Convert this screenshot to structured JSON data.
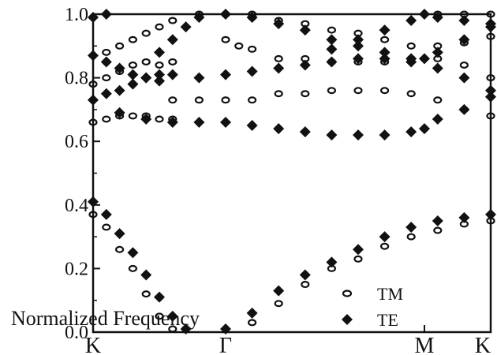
{
  "chart_data": {
    "type": "scatter",
    "title": "",
    "xlabel": "",
    "ylabel": "Normalized Frequency",
    "ylim": [
      0.0,
      1.0
    ],
    "xlim": [
      0.0,
      3.0
    ],
    "y_ticks": [
      "0.0",
      "0.2",
      "0.4",
      "0.6",
      "0.8",
      "1.0"
    ],
    "y_tick_values": [
      0.0,
      0.2,
      0.4,
      0.6,
      0.8,
      1.0
    ],
    "x_ticks": [
      {
        "label": "K",
        "value": 0.0
      },
      {
        "label": "Γ",
        "value": 1.0
      },
      {
        "label": "M",
        "value": 2.5
      },
      {
        "label": "K",
        "value": 3.0
      }
    ],
    "legend_position": "bottom-right",
    "series": [
      {
        "name": "TM",
        "marker": "open-ellipse",
        "color": "#111111",
        "bands": [
          [
            [
              0.0,
              0.37
            ],
            [
              0.1,
              0.33
            ],
            [
              0.2,
              0.26
            ],
            [
              0.3,
              0.2
            ],
            [
              0.4,
              0.12
            ],
            [
              0.5,
              0.05
            ],
            [
              0.6,
              0.01
            ]
          ],
          [
            [
              1.2,
              0.03
            ],
            [
              1.4,
              0.09
            ],
            [
              1.6,
              0.15
            ],
            [
              1.8,
              0.2
            ],
            [
              2.0,
              0.23
            ],
            [
              2.2,
              0.27
            ],
            [
              2.4,
              0.3
            ],
            [
              2.6,
              0.32
            ],
            [
              2.8,
              0.34
            ],
            [
              3.0,
              0.35
            ]
          ],
          [
            [
              0.0,
              0.66
            ],
            [
              0.1,
              0.67
            ],
            [
              0.2,
              0.68
            ],
            [
              0.3,
              0.68
            ],
            [
              0.4,
              0.68
            ],
            [
              0.5,
              0.67
            ],
            [
              0.6,
              0.67
            ]
          ],
          [
            [
              0.6,
              0.73
            ],
            [
              0.8,
              0.73
            ],
            [
              1.0,
              0.73
            ],
            [
              1.2,
              0.73
            ],
            [
              1.4,
              0.75
            ],
            [
              1.6,
              0.75
            ],
            [
              1.8,
              0.76
            ],
            [
              2.0,
              0.76
            ],
            [
              2.2,
              0.76
            ],
            [
              2.4,
              0.75
            ],
            [
              2.6,
              0.73
            ],
            [
              2.8,
              0.7
            ],
            [
              3.0,
              0.68
            ]
          ],
          [
            [
              0.0,
              0.78
            ],
            [
              0.1,
              0.8
            ],
            [
              0.2,
              0.82
            ],
            [
              0.3,
              0.84
            ],
            [
              0.4,
              0.85
            ],
            [
              0.5,
              0.84
            ],
            [
              0.6,
              0.85
            ]
          ],
          [
            [
              0.1,
              0.88
            ],
            [
              0.2,
              0.9
            ],
            [
              0.3,
              0.92
            ],
            [
              0.4,
              0.94
            ],
            [
              0.5,
              0.96
            ]
          ],
          [
            [
              1.4,
              0.86
            ],
            [
              1.6,
              0.86
            ],
            [
              1.8,
              0.85
            ],
            [
              2.0,
              0.85
            ],
            [
              2.2,
              0.85
            ],
            [
              2.4,
              0.86
            ],
            [
              2.6,
              0.86
            ],
            [
              2.8,
              0.84
            ],
            [
              3.0,
              0.8
            ]
          ],
          [
            [
              1.0,
              0.92
            ],
            [
              1.1,
              0.9
            ],
            [
              1.2,
              0.89
            ]
          ],
          [
            [
              1.2,
              0.99
            ],
            [
              1.4,
              0.98
            ],
            [
              1.6,
              0.97
            ],
            [
              1.8,
              0.95
            ],
            [
              2.0,
              0.94
            ],
            [
              2.2,
              0.92
            ],
            [
              2.4,
              0.9
            ],
            [
              2.6,
              0.9
            ],
            [
              2.8,
              0.91
            ],
            [
              3.0,
              0.93
            ]
          ],
          [
            [
              0.6,
              0.98
            ],
            [
              0.8,
              1.0
            ],
            [
              1.0,
              1.0
            ],
            [
              1.2,
              1.0
            ],
            [
              2.6,
              1.0
            ],
            [
              2.8,
              1.0
            ],
            [
              3.0,
              1.0
            ]
          ]
        ]
      },
      {
        "name": "TE",
        "marker": "filled-diamond",
        "color": "#111111",
        "bands": [
          [
            [
              0.0,
              0.41
            ],
            [
              0.1,
              0.37
            ],
            [
              0.2,
              0.31
            ],
            [
              0.3,
              0.25
            ],
            [
              0.4,
              0.18
            ],
            [
              0.5,
              0.11
            ],
            [
              0.6,
              0.05
            ],
            [
              0.7,
              0.01
            ]
          ],
          [
            [
              1.0,
              0.01
            ],
            [
              1.2,
              0.06
            ],
            [
              1.4,
              0.13
            ],
            [
              1.6,
              0.18
            ],
            [
              1.8,
              0.22
            ],
            [
              2.0,
              0.26
            ],
            [
              2.2,
              0.3
            ],
            [
              2.4,
              0.33
            ],
            [
              2.6,
              0.35
            ],
            [
              2.8,
              0.36
            ],
            [
              3.0,
              0.37
            ]
          ],
          [
            [
              0.2,
              0.69
            ],
            [
              0.4,
              0.67
            ],
            [
              0.6,
              0.66
            ],
            [
              0.8,
              0.66
            ],
            [
              1.0,
              0.66
            ],
            [
              1.2,
              0.65
            ],
            [
              1.4,
              0.64
            ],
            [
              1.6,
              0.63
            ],
            [
              1.8,
              0.62
            ],
            [
              2.0,
              0.62
            ],
            [
              2.2,
              0.62
            ],
            [
              2.4,
              0.63
            ],
            [
              2.5,
              0.64
            ],
            [
              2.6,
              0.67
            ],
            [
              2.8,
              0.7
            ],
            [
              3.0,
              0.74
            ]
          ],
          [
            [
              0.0,
              0.73
            ],
            [
              0.1,
              0.75
            ],
            [
              0.2,
              0.76
            ],
            [
              0.3,
              0.78
            ],
            [
              0.4,
              0.8
            ],
            [
              0.5,
              0.81
            ],
            [
              0.6,
              0.81
            ],
            [
              0.8,
              0.8
            ],
            [
              1.0,
              0.81
            ],
            [
              1.2,
              0.82
            ],
            [
              1.4,
              0.83
            ],
            [
              1.6,
              0.84
            ],
            [
              1.8,
              0.85
            ],
            [
              2.0,
              0.86
            ],
            [
              2.2,
              0.86
            ],
            [
              2.4,
              0.85
            ],
            [
              2.6,
              0.83
            ],
            [
              2.8,
              0.8
            ],
            [
              3.0,
              0.76
            ]
          ],
          [
            [
              0.0,
              0.87
            ],
            [
              0.1,
              0.85
            ],
            [
              0.2,
              0.83
            ],
            [
              0.3,
              0.81
            ],
            [
              0.4,
              0.8
            ],
            [
              0.5,
              0.79
            ]
          ],
          [
            [
              0.5,
              0.88
            ],
            [
              0.6,
              0.92
            ],
            [
              0.7,
              0.96
            ],
            [
              0.8,
              0.99
            ],
            [
              1.0,
              1.0
            ],
            [
              1.2,
              0.99
            ],
            [
              1.4,
              0.97
            ],
            [
              1.6,
              0.95
            ],
            [
              1.8,
              0.92
            ],
            [
              2.0,
              0.9
            ],
            [
              2.2,
              0.88
            ],
            [
              2.4,
              0.86
            ],
            [
              2.5,
              0.86
            ],
            [
              2.6,
              0.88
            ],
            [
              2.8,
              0.92
            ],
            [
              3.0,
              0.96
            ]
          ],
          [
            [
              0.0,
              0.99
            ],
            [
              0.1,
              1.0
            ],
            [
              1.8,
              0.89
            ],
            [
              2.0,
              0.92
            ],
            [
              2.2,
              0.95
            ],
            [
              2.4,
              0.98
            ],
            [
              2.5,
              1.0
            ],
            [
              2.6,
              0.99
            ],
            [
              2.8,
              0.98
            ],
            [
              3.0,
              0.97
            ]
          ]
        ]
      }
    ]
  }
}
